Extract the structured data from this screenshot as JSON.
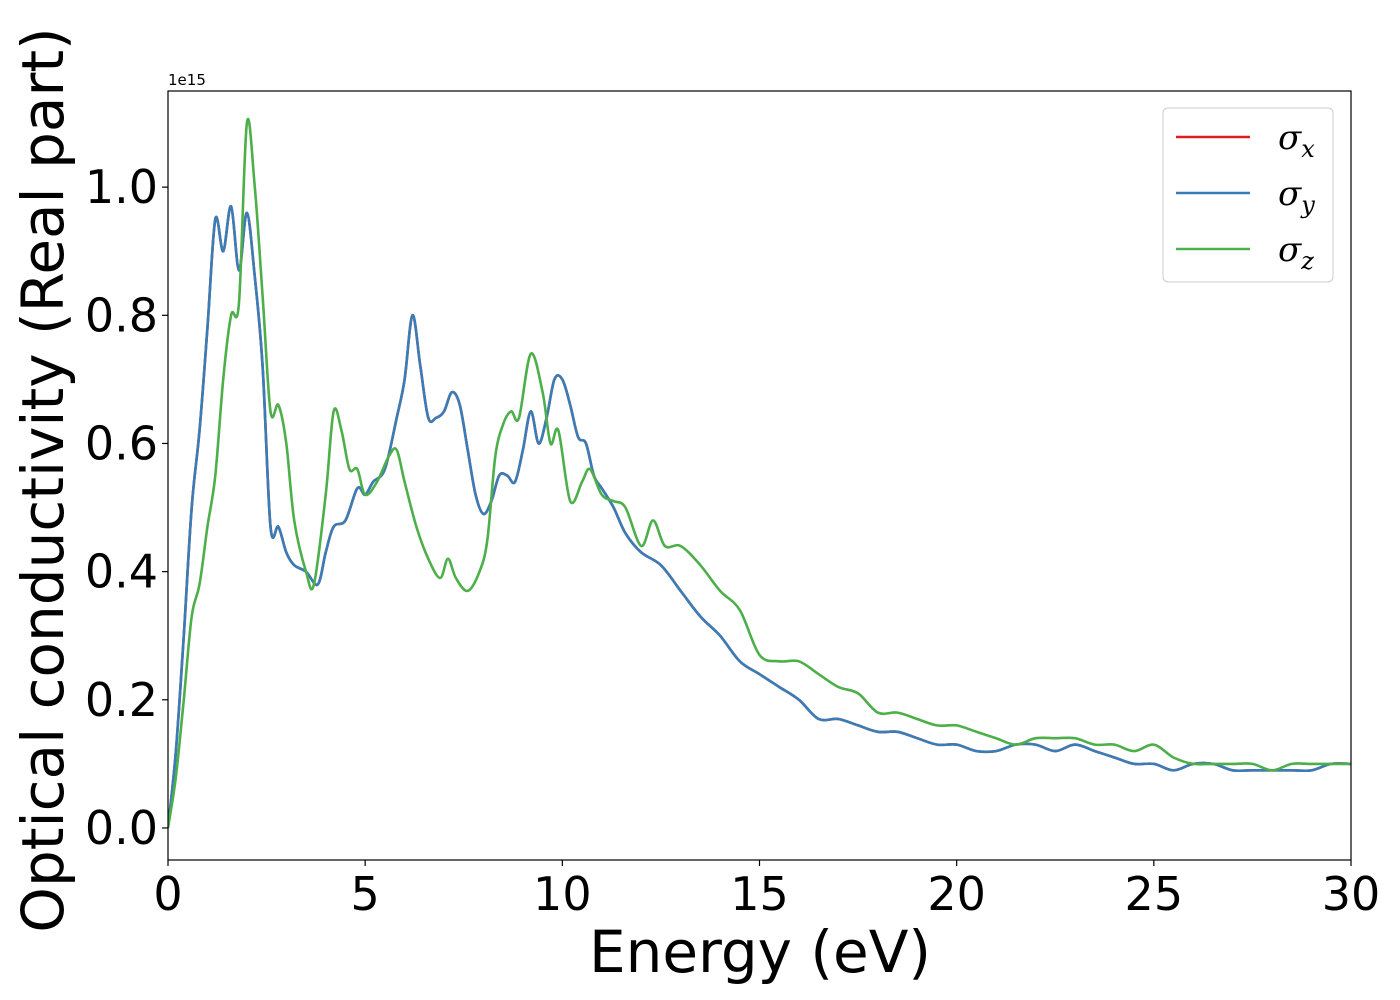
{
  "chart_data": {
    "type": "line",
    "xlabel": "Energy (eV)",
    "ylabel": "Optical conductivity (Real part)",
    "y_scale_label": "1e15",
    "xlim": [
      0,
      30
    ],
    "ylim": [
      -0.05,
      1.15
    ],
    "x_ticks": [
      0,
      5,
      10,
      15,
      20,
      25,
      30
    ],
    "x_tick_labels": [
      "0",
      "5",
      "10",
      "15",
      "20",
      "25",
      "30"
    ],
    "y_ticks": [
      0.0,
      0.2,
      0.4,
      0.6,
      0.8,
      1.0
    ],
    "y_tick_labels": [
      "0.0",
      "0.2",
      "0.4",
      "0.6",
      "0.8",
      "1.0"
    ],
    "grid": false,
    "legend_position": "top-right",
    "series": [
      {
        "name": "σx",
        "legend_symbol": "σ",
        "legend_subscript": "x",
        "color": "#e41a1c",
        "x": [
          0,
          0.2,
          0.4,
          0.6,
          0.8,
          1.0,
          1.2,
          1.4,
          1.6,
          1.8,
          2.0,
          2.2,
          2.4,
          2.6,
          2.8,
          3.0,
          3.2,
          3.5,
          3.8,
          4.0,
          4.2,
          4.5,
          4.8,
          5.0,
          5.2,
          5.5,
          5.8,
          6.0,
          6.2,
          6.4,
          6.6,
          6.8,
          7.0,
          7.2,
          7.4,
          7.6,
          7.8,
          8.0,
          8.2,
          8.4,
          8.6,
          8.8,
          9.0,
          9.2,
          9.4,
          9.6,
          9.8,
          10.0,
          10.2,
          10.4,
          10.6,
          10.8,
          11.0,
          11.3,
          11.6,
          12.0,
          12.5,
          13.0,
          13.5,
          14.0,
          14.5,
          15.0,
          15.5,
          16.0,
          16.5,
          17.0,
          17.5,
          18.0,
          18.5,
          19.0,
          19.5,
          20.0,
          20.5,
          21.0,
          21.5,
          22.0,
          22.5,
          23.0,
          23.5,
          24.0,
          24.5,
          25.0,
          25.5,
          26.0,
          26.5,
          27.0,
          27.5,
          28.0,
          28.5,
          29.0,
          29.5,
          30.0
        ],
        "y": [
          0.0,
          0.12,
          0.3,
          0.5,
          0.62,
          0.78,
          0.95,
          0.9,
          0.97,
          0.87,
          0.96,
          0.86,
          0.72,
          0.47,
          0.47,
          0.43,
          0.41,
          0.4,
          0.38,
          0.43,
          0.47,
          0.48,
          0.53,
          0.52,
          0.54,
          0.56,
          0.64,
          0.7,
          0.8,
          0.72,
          0.64,
          0.64,
          0.65,
          0.68,
          0.66,
          0.59,
          0.52,
          0.49,
          0.51,
          0.55,
          0.55,
          0.54,
          0.59,
          0.65,
          0.6,
          0.64,
          0.7,
          0.7,
          0.66,
          0.61,
          0.6,
          0.55,
          0.53,
          0.5,
          0.46,
          0.43,
          0.41,
          0.37,
          0.33,
          0.3,
          0.26,
          0.24,
          0.22,
          0.2,
          0.17,
          0.17,
          0.16,
          0.15,
          0.15,
          0.14,
          0.13,
          0.13,
          0.12,
          0.12,
          0.13,
          0.13,
          0.12,
          0.13,
          0.12,
          0.11,
          0.1,
          0.1,
          0.09,
          0.1,
          0.1,
          0.09,
          0.09,
          0.09,
          0.09,
          0.09,
          0.1,
          0.1
        ]
      },
      {
        "name": "σy",
        "legend_symbol": "σ",
        "legend_subscript": "y",
        "color": "#377eb8",
        "x": [
          0,
          0.2,
          0.4,
          0.6,
          0.8,
          1.0,
          1.2,
          1.4,
          1.6,
          1.8,
          2.0,
          2.2,
          2.4,
          2.6,
          2.8,
          3.0,
          3.2,
          3.5,
          3.8,
          4.0,
          4.2,
          4.5,
          4.8,
          5.0,
          5.2,
          5.5,
          5.8,
          6.0,
          6.2,
          6.4,
          6.6,
          6.8,
          7.0,
          7.2,
          7.4,
          7.6,
          7.8,
          8.0,
          8.2,
          8.4,
          8.6,
          8.8,
          9.0,
          9.2,
          9.4,
          9.6,
          9.8,
          10.0,
          10.2,
          10.4,
          10.6,
          10.8,
          11.0,
          11.3,
          11.6,
          12.0,
          12.5,
          13.0,
          13.5,
          14.0,
          14.5,
          15.0,
          15.5,
          16.0,
          16.5,
          17.0,
          17.5,
          18.0,
          18.5,
          19.0,
          19.5,
          20.0,
          20.5,
          21.0,
          21.5,
          22.0,
          22.5,
          23.0,
          23.5,
          24.0,
          24.5,
          25.0,
          25.5,
          26.0,
          26.5,
          27.0,
          27.5,
          28.0,
          28.5,
          29.0,
          29.5,
          30.0
        ],
        "y": [
          0.0,
          0.12,
          0.3,
          0.5,
          0.62,
          0.78,
          0.95,
          0.9,
          0.97,
          0.87,
          0.96,
          0.86,
          0.72,
          0.47,
          0.47,
          0.43,
          0.41,
          0.4,
          0.38,
          0.43,
          0.47,
          0.48,
          0.53,
          0.52,
          0.54,
          0.56,
          0.64,
          0.7,
          0.8,
          0.72,
          0.64,
          0.64,
          0.65,
          0.68,
          0.66,
          0.59,
          0.52,
          0.49,
          0.51,
          0.55,
          0.55,
          0.54,
          0.59,
          0.65,
          0.6,
          0.64,
          0.7,
          0.7,
          0.66,
          0.61,
          0.6,
          0.55,
          0.53,
          0.5,
          0.46,
          0.43,
          0.41,
          0.37,
          0.33,
          0.3,
          0.26,
          0.24,
          0.22,
          0.2,
          0.17,
          0.17,
          0.16,
          0.15,
          0.15,
          0.14,
          0.13,
          0.13,
          0.12,
          0.12,
          0.13,
          0.13,
          0.12,
          0.13,
          0.12,
          0.11,
          0.1,
          0.1,
          0.09,
          0.1,
          0.1,
          0.09,
          0.09,
          0.09,
          0.09,
          0.09,
          0.1,
          0.1
        ]
      },
      {
        "name": "σz",
        "legend_symbol": "σ",
        "legend_subscript": "z",
        "color": "#4daf4a",
        "x": [
          0,
          0.2,
          0.4,
          0.6,
          0.8,
          1.0,
          1.2,
          1.4,
          1.6,
          1.8,
          2.0,
          2.2,
          2.4,
          2.6,
          2.8,
          3.0,
          3.2,
          3.5,
          3.7,
          4.0,
          4.2,
          4.4,
          4.6,
          4.8,
          5.0,
          5.3,
          5.6,
          5.8,
          6.0,
          6.3,
          6.6,
          6.9,
          7.1,
          7.3,
          7.6,
          7.9,
          8.1,
          8.3,
          8.5,
          8.7,
          8.9,
          9.2,
          9.5,
          9.7,
          9.9,
          10.2,
          10.5,
          10.7,
          11.0,
          11.3,
          11.6,
          12.0,
          12.3,
          12.6,
          13.0,
          13.5,
          14.0,
          14.5,
          15.0,
          15.5,
          16.0,
          16.5,
          17.0,
          17.5,
          18.0,
          18.5,
          19.0,
          19.5,
          20.0,
          20.5,
          21.0,
          21.5,
          22.0,
          22.5,
          23.0,
          23.5,
          24.0,
          24.5,
          25.0,
          25.5,
          26.0,
          26.5,
          27.0,
          27.5,
          28.0,
          28.5,
          29.0,
          29.5,
          30.0
        ],
        "y": [
          0.0,
          0.08,
          0.2,
          0.33,
          0.38,
          0.47,
          0.55,
          0.7,
          0.8,
          0.82,
          1.1,
          1.0,
          0.83,
          0.65,
          0.66,
          0.6,
          0.48,
          0.4,
          0.38,
          0.52,
          0.65,
          0.62,
          0.56,
          0.56,
          0.52,
          0.54,
          0.58,
          0.59,
          0.54,
          0.47,
          0.42,
          0.39,
          0.42,
          0.39,
          0.37,
          0.4,
          0.45,
          0.58,
          0.63,
          0.65,
          0.64,
          0.74,
          0.68,
          0.6,
          0.62,
          0.51,
          0.54,
          0.56,
          0.52,
          0.51,
          0.5,
          0.44,
          0.48,
          0.44,
          0.44,
          0.41,
          0.37,
          0.34,
          0.27,
          0.26,
          0.26,
          0.24,
          0.22,
          0.21,
          0.18,
          0.18,
          0.17,
          0.16,
          0.16,
          0.15,
          0.14,
          0.13,
          0.14,
          0.14,
          0.14,
          0.13,
          0.13,
          0.12,
          0.13,
          0.11,
          0.1,
          0.1,
          0.1,
          0.1,
          0.09,
          0.1,
          0.1,
          0.1,
          0.1
        ]
      }
    ]
  }
}
